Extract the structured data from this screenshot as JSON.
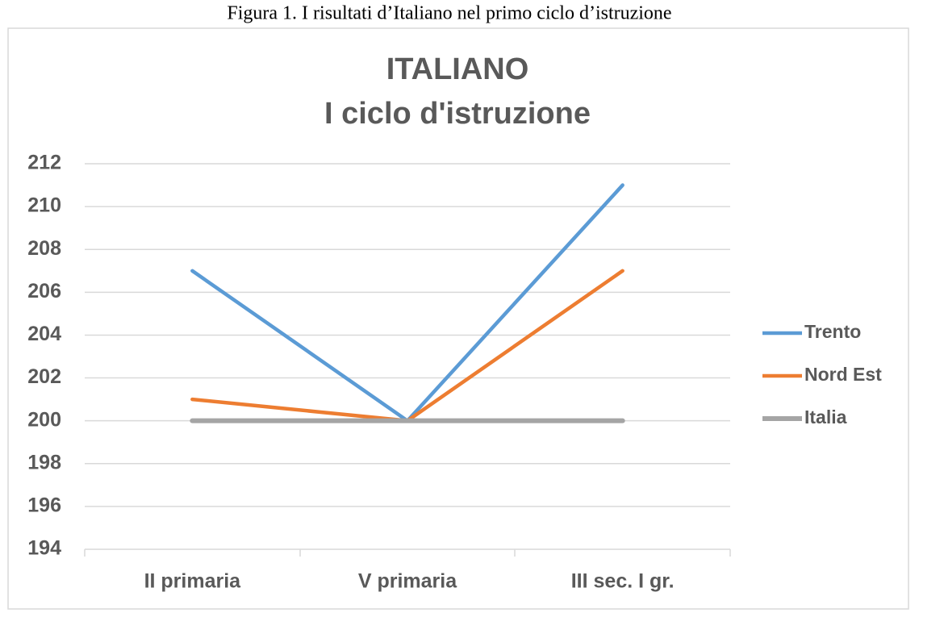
{
  "caption": "Figura 1. I risultati d’Italiano nel primo ciclo d’istruzione",
  "chart_data": {
    "type": "line",
    "title": "ITALIANO",
    "subtitle": "I ciclo d'istruzione",
    "categories": [
      "II primaria",
      "V primaria",
      "III sec. I gr."
    ],
    "series": [
      {
        "name": "Trento",
        "color": "#5b9bd5",
        "values": [
          207,
          200,
          211
        ]
      },
      {
        "name": "Nord Est",
        "color": "#ed7d31",
        "values": [
          201,
          200,
          207
        ]
      },
      {
        "name": "Italia",
        "color": "#a5a5a5",
        "values": [
          200,
          200,
          200
        ]
      }
    ],
    "ylim": [
      194,
      212
    ],
    "yticks": [
      194,
      196,
      198,
      200,
      202,
      204,
      206,
      208,
      210,
      212
    ],
    "grid": true,
    "legend": "right"
  }
}
